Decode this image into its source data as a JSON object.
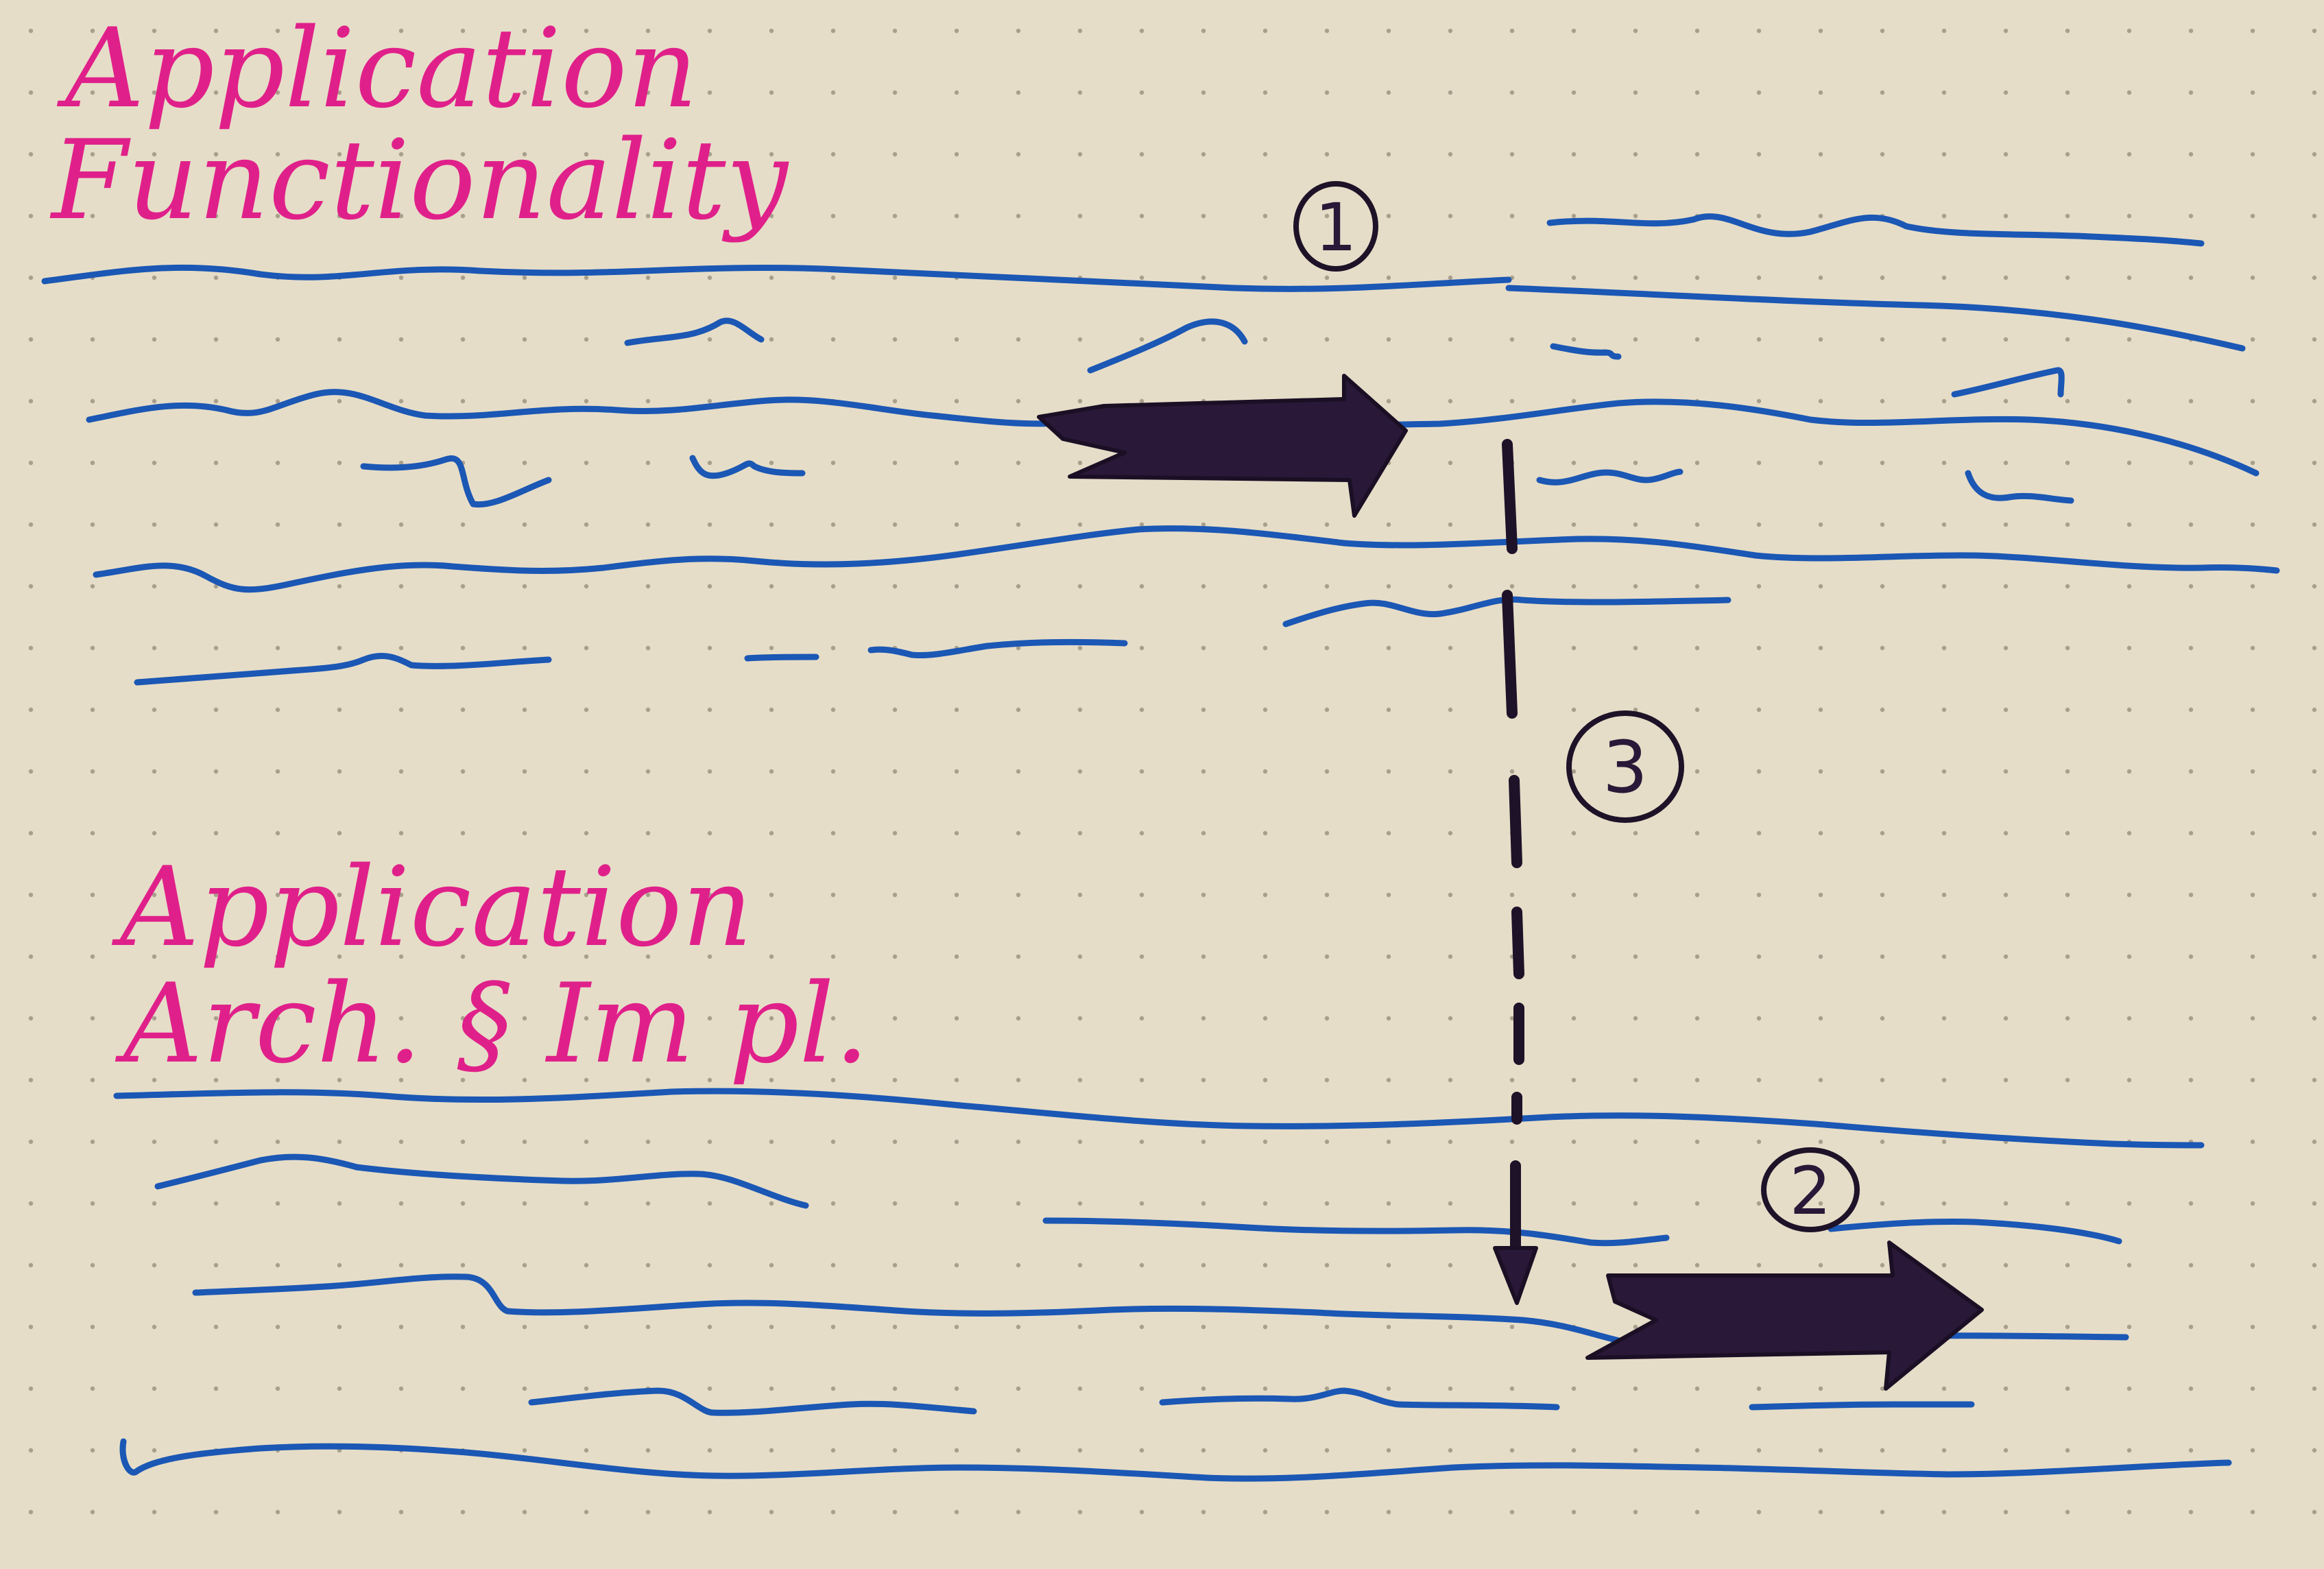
{
  "diagram": {
    "colors": {
      "paper": "#e6ddc8",
      "dot_grid": "#a89f8c",
      "title_ink": "#e0208a",
      "wave_ink": "#1b57b4",
      "marker_ink": "#2a1838"
    },
    "top_section": {
      "title_line1": "Application",
      "title_line2": "Functionality"
    },
    "bottom_section": {
      "title_line1": "Application",
      "title_line2": "Arch. § Im pl."
    },
    "markers": {
      "one": "1",
      "two": "2",
      "three": "3"
    },
    "arrows": [
      "horizontal-arrow-top",
      "horizontal-arrow-bottom",
      "dashed-down-arrow"
    ]
  }
}
